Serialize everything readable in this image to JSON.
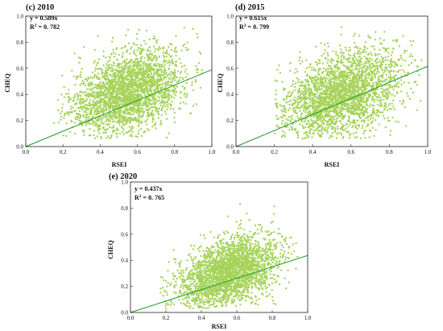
{
  "chart_data": [
    {
      "type": "scatter",
      "panel_label": "(c) 2010",
      "xlabel": "RSEI",
      "ylabel": "CHEQ",
      "xlim": [
        0,
        1.0
      ],
      "ylim": [
        0,
        1.0
      ],
      "x_ticks": [
        "0.0",
        "0.2",
        "0.4",
        "0.6",
        "0.8",
        "1.0"
      ],
      "y_ticks": [
        "0.0",
        "0.2",
        "0.4",
        "0.6",
        "0.8",
        "1.0"
      ],
      "fit": {
        "equation": "y = 0.589x",
        "r2_prefix": "R",
        "r2_exp": "2",
        "r2_value": " = 0. 782",
        "slope": 0.589
      },
      "point_cloud": {
        "x_center": 0.55,
        "y_center": 0.42,
        "x_spread": 0.15,
        "y_spread": 0.15,
        "x_range": [
          0.15,
          0.95
        ],
        "y_range": [
          0.06,
          0.95
        ]
      },
      "colors": {
        "points": "#a6d35a",
        "fit_line": "#1f9c28"
      }
    },
    {
      "type": "scatter",
      "panel_label": "(d) 2015",
      "xlabel": "RSEI",
      "ylabel": "CHEQ",
      "xlim": [
        0,
        1.0
      ],
      "ylim": [
        0,
        1.0
      ],
      "x_ticks": [
        "0.0",
        "0.2",
        "0.4",
        "0.6",
        "0.8",
        "1.0"
      ],
      "y_ticks": [
        "0.0",
        "0.2",
        "0.4",
        "0.6",
        "0.8",
        "1.0"
      ],
      "fit": {
        "equation": "y = 0.615x",
        "r2_prefix": "R",
        "r2_exp": "2",
        "r2_value": " = 0. 799",
        "slope": 0.615
      },
      "point_cloud": {
        "x_center": 0.55,
        "y_center": 0.4,
        "x_spread": 0.16,
        "y_spread": 0.16,
        "x_range": [
          0.2,
          0.97
        ],
        "y_range": [
          0.06,
          0.95
        ]
      },
      "colors": {
        "points": "#a6d35a",
        "fit_line": "#1f9c28"
      }
    },
    {
      "type": "scatter",
      "panel_label": "(e) 2020",
      "xlabel": "RSEI",
      "ylabel": "CHEQ",
      "xlim": [
        0,
        1.0
      ],
      "ylim": [
        0,
        1.0
      ],
      "x_ticks": [
        "0.0",
        "0.2",
        "0.4",
        "0.6",
        "0.8",
        "1.0"
      ],
      "y_ticks": [
        "0.0",
        "0.2",
        "0.4",
        "0.6",
        "0.8",
        "1.0"
      ],
      "fit": {
        "equation": "y = 0.437x",
        "r2_prefix": "R",
        "r2_exp": "2",
        "r2_value": " = 0. 765",
        "slope": 0.437
      },
      "point_cloud": {
        "x_center": 0.55,
        "y_center": 0.3,
        "x_spread": 0.14,
        "y_spread": 0.13,
        "x_range": [
          0.15,
          0.95
        ],
        "y_range": [
          0.03,
          0.9
        ]
      },
      "colors": {
        "points": "#a6d35a",
        "fit_line": "#1f9c28"
      }
    }
  ]
}
